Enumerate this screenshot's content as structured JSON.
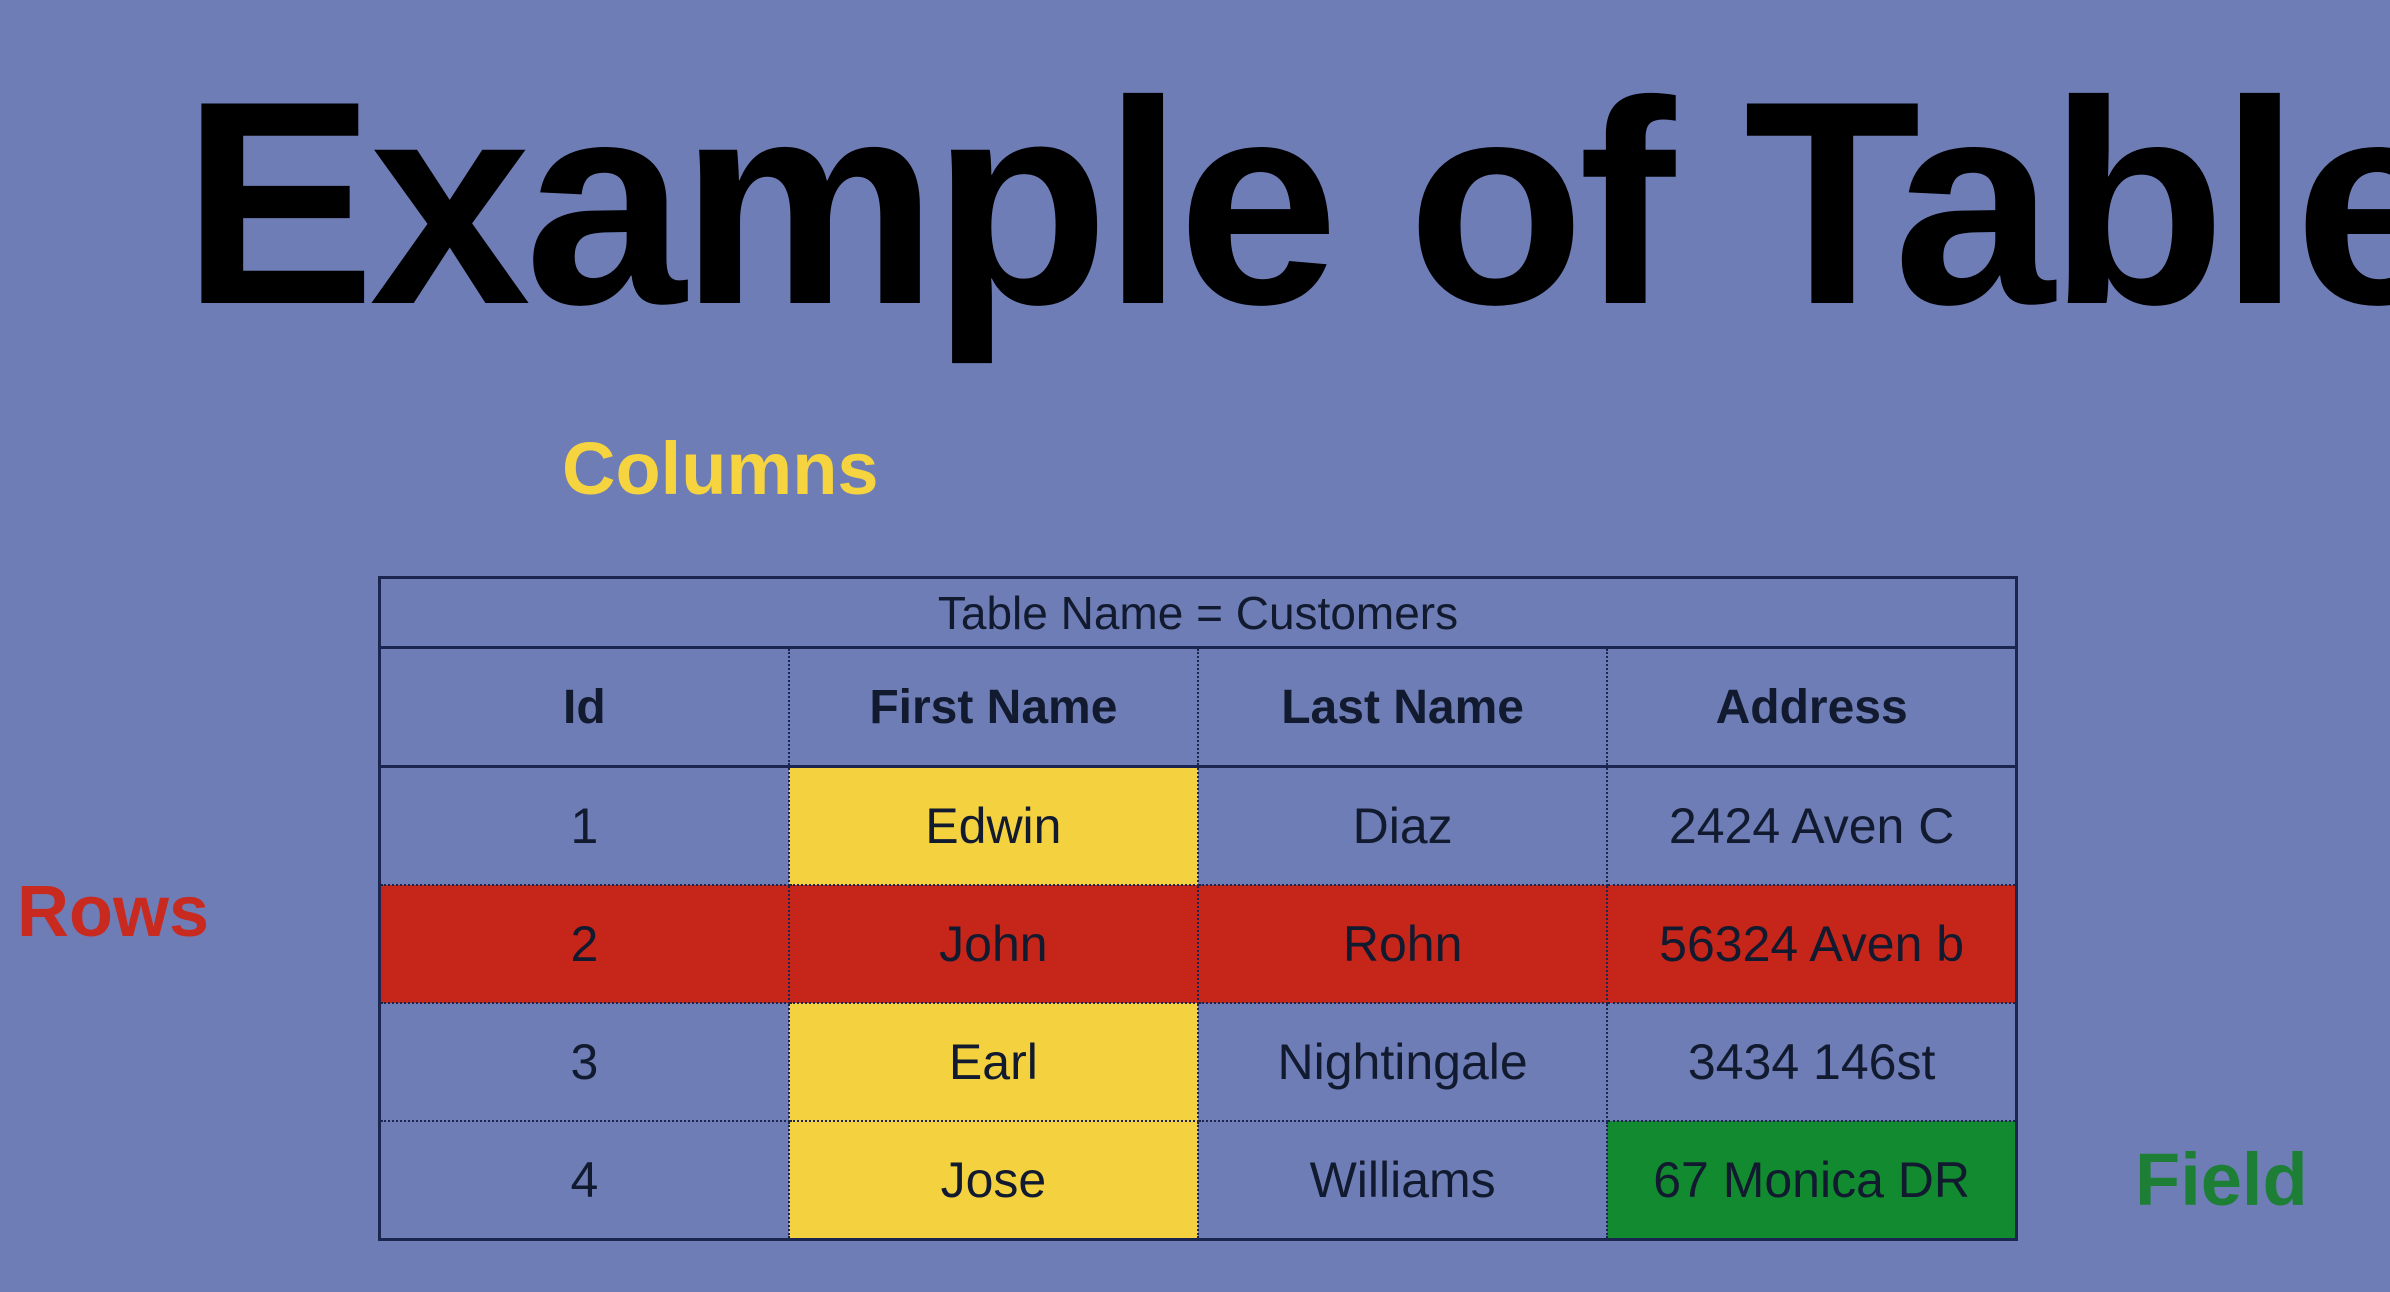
{
  "title": "Example of Table",
  "labels": {
    "columns": "Columns",
    "rows": "Rows",
    "field": "Field"
  },
  "colors": {
    "background": "#6e7db6",
    "columns_highlight": "#f4d23f",
    "rows_highlight": "#c6251a",
    "field_highlight": "#128a2f"
  },
  "table": {
    "caption": "Table Name = Customers",
    "headers": [
      "Id",
      "First Name",
      "Last Name",
      "Address"
    ],
    "rows": [
      [
        "1",
        "Edwin",
        "Diaz",
        "2424 Aven C"
      ],
      [
        "2",
        "John",
        "Rohn",
        "56324 Aven b"
      ],
      [
        "3",
        "Earl",
        "Nightingale",
        "3434 146st"
      ],
      [
        "4",
        "Jose",
        "Williams",
        "67 Monica DR"
      ]
    ]
  }
}
